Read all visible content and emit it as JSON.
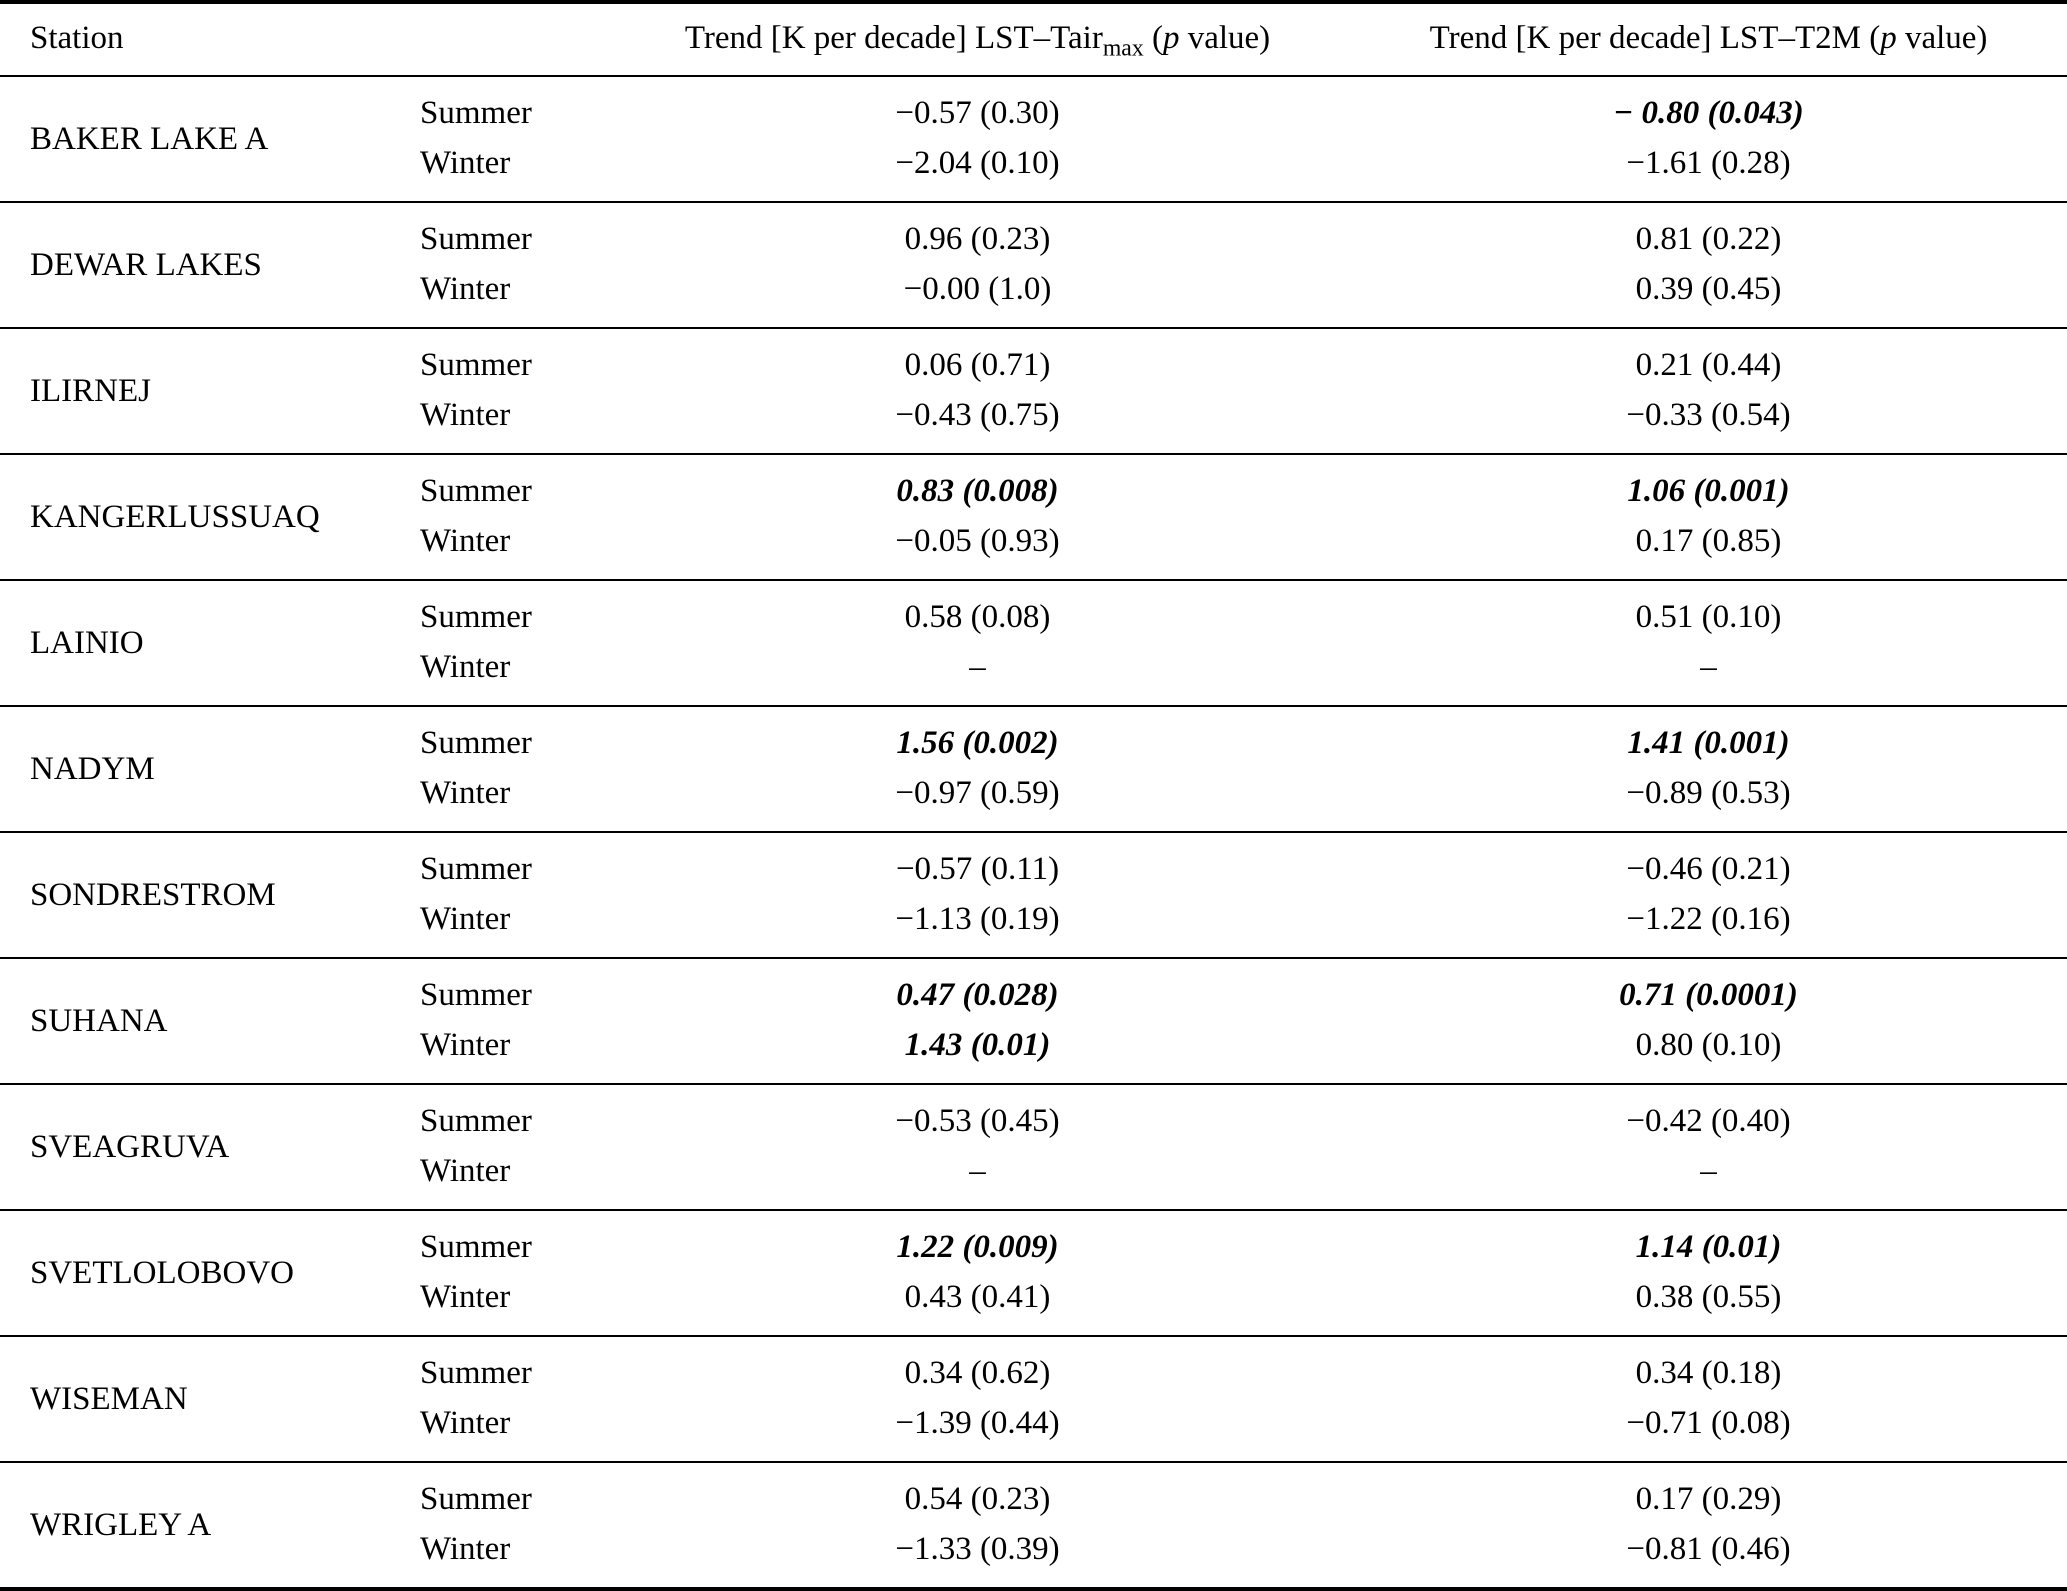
{
  "header": {
    "station": "Station",
    "tair": {
      "prefix": "Trend [K per decade] LST–Tair",
      "sub": "max",
      "open": " (",
      "p": "p",
      "suffix": " value)"
    },
    "t2m": {
      "prefix": "Trend [K per decade] LST–T2M (",
      "p": "p",
      "suffix": " value)"
    }
  },
  "rows": [
    {
      "station": "BAKER LAKE A",
      "summer": {
        "label": "Summer",
        "tair": "−0.57 (0.30)",
        "tair_sig": false,
        "t2m": "− 0.80 (0.043)",
        "t2m_sig": true
      },
      "winter": {
        "label": "Winter",
        "tair": "−2.04 (0.10)",
        "tair_sig": false,
        "t2m": "−1.61 (0.28)",
        "t2m_sig": false
      }
    },
    {
      "station": "DEWAR LAKES",
      "summer": {
        "label": "Summer",
        "tair": "0.96 (0.23)",
        "tair_sig": false,
        "t2m": "0.81 (0.22)",
        "t2m_sig": false
      },
      "winter": {
        "label": "Winter",
        "tair": "−0.00 (1.0)",
        "tair_sig": false,
        "t2m": "0.39 (0.45)",
        "t2m_sig": false
      }
    },
    {
      "station": "ILIRNEJ",
      "summer": {
        "label": "Summer",
        "tair": "0.06 (0.71)",
        "tair_sig": false,
        "t2m": "0.21 (0.44)",
        "t2m_sig": false
      },
      "winter": {
        "label": "Winter",
        "tair": "−0.43 (0.75)",
        "tair_sig": false,
        "t2m": "−0.33 (0.54)",
        "t2m_sig": false
      }
    },
    {
      "station": "KANGERLUSSUAQ",
      "summer": {
        "label": "Summer",
        "tair": "0.83 (0.008)",
        "tair_sig": true,
        "t2m": "1.06 (0.001)",
        "t2m_sig": true
      },
      "winter": {
        "label": "Winter",
        "tair": "−0.05 (0.93)",
        "tair_sig": false,
        "t2m": "0.17 (0.85)",
        "t2m_sig": false
      }
    },
    {
      "station": "LAINIO",
      "summer": {
        "label": "Summer",
        "tair": "0.58 (0.08)",
        "tair_sig": false,
        "t2m": "0.51 (0.10)",
        "t2m_sig": false
      },
      "winter": {
        "label": "Winter",
        "tair": "–",
        "tair_sig": false,
        "t2m": "–",
        "t2m_sig": false
      }
    },
    {
      "station": "NADYM",
      "summer": {
        "label": "Summer",
        "tair": "1.56 (0.002)",
        "tair_sig": true,
        "t2m": "1.41 (0.001)",
        "t2m_sig": true
      },
      "winter": {
        "label": "Winter",
        "tair": "−0.97 (0.59)",
        "tair_sig": false,
        "t2m": "−0.89 (0.53)",
        "t2m_sig": false
      }
    },
    {
      "station": "SONDRESTROM",
      "summer": {
        "label": "Summer",
        "tair": "−0.57 (0.11)",
        "tair_sig": false,
        "t2m": "−0.46 (0.21)",
        "t2m_sig": false
      },
      "winter": {
        "label": "Winter",
        "tair": "−1.13 (0.19)",
        "tair_sig": false,
        "t2m": "−1.22 (0.16)",
        "t2m_sig": false
      }
    },
    {
      "station": "SUHANA",
      "summer": {
        "label": "Summer",
        "tair": "0.47 (0.028)",
        "tair_sig": true,
        "t2m": "0.71 (0.0001)",
        "t2m_sig": true
      },
      "winter": {
        "label": "Winter",
        "tair": "1.43 (0.01)",
        "tair_sig": true,
        "t2m": "0.80 (0.10)",
        "t2m_sig": false
      }
    },
    {
      "station": "SVEAGRUVA",
      "summer": {
        "label": "Summer",
        "tair": "−0.53 (0.45)",
        "tair_sig": false,
        "t2m": "−0.42 (0.40)",
        "t2m_sig": false
      },
      "winter": {
        "label": "Winter",
        "tair": "–",
        "tair_sig": false,
        "t2m": "–",
        "t2m_sig": false
      }
    },
    {
      "station": "SVETLOLOBOVO",
      "summer": {
        "label": "Summer",
        "tair": "1.22 (0.009)",
        "tair_sig": true,
        "t2m": "1.14 (0.01)",
        "t2m_sig": true
      },
      "winter": {
        "label": "Winter",
        "tair": "0.43 (0.41)",
        "tair_sig": false,
        "t2m": "0.38 (0.55)",
        "t2m_sig": false
      }
    },
    {
      "station": "WISEMAN",
      "summer": {
        "label": "Summer",
        "tair": "0.34 (0.62)",
        "tair_sig": false,
        "t2m": "0.34 (0.18)",
        "t2m_sig": false
      },
      "winter": {
        "label": "Winter",
        "tair": "−1.39 (0.44)",
        "tair_sig": false,
        "t2m": "−0.71 (0.08)",
        "t2m_sig": false
      }
    },
    {
      "station": "WRIGLEY A",
      "summer": {
        "label": "Summer",
        "tair": "0.54 (0.23)",
        "tair_sig": false,
        "t2m": "0.17 (0.29)",
        "t2m_sig": false
      },
      "winter": {
        "label": "Winter",
        "tair": "−1.33 (0.39)",
        "tair_sig": false,
        "t2m": "−0.81 (0.46)",
        "t2m_sig": false
      }
    }
  ]
}
